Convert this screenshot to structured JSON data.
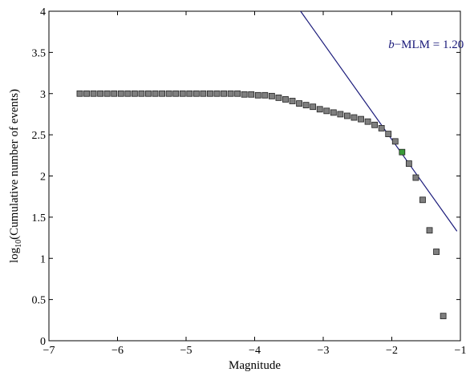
{
  "chart_data": {
    "type": "scatter",
    "xlabel": "Magnitude",
    "ylabel_prefix": "log",
    "ylabel_sub": "10",
    "ylabel_rest": "(Cumulative number of events)",
    "xlim": [
      -7,
      -1
    ],
    "ylim": [
      0,
      4
    ],
    "xticks": [
      -7,
      -6,
      -5,
      -4,
      -3,
      -2,
      -1
    ],
    "yticks": [
      0,
      0.5,
      1,
      1.5,
      2,
      2.5,
      3,
      3.5,
      4
    ],
    "xtick_labels": [
      "−7",
      "−6",
      "−5",
      "−4",
      "−3",
      "−2",
      "−1"
    ],
    "ytick_labels": [
      "0",
      "0.5",
      "1",
      "1.5",
      "2",
      "2.5",
      "3",
      "3.5",
      "4"
    ],
    "grid": false,
    "marker_color": "#7f7f7f",
    "highlight_color": "#3a9a3a",
    "line_color": "#1a1a7a",
    "points": [
      {
        "x": -6.55,
        "y": 3.0
      },
      {
        "x": -6.45,
        "y": 3.0
      },
      {
        "x": -6.35,
        "y": 3.0
      },
      {
        "x": -6.25,
        "y": 3.0
      },
      {
        "x": -6.15,
        "y": 3.0
      },
      {
        "x": -6.05,
        "y": 3.0
      },
      {
        "x": -5.95,
        "y": 3.0
      },
      {
        "x": -5.85,
        "y": 3.0
      },
      {
        "x": -5.75,
        "y": 3.0
      },
      {
        "x": -5.65,
        "y": 3.0
      },
      {
        "x": -5.55,
        "y": 3.0
      },
      {
        "x": -5.45,
        "y": 3.0
      },
      {
        "x": -5.35,
        "y": 3.0
      },
      {
        "x": -5.25,
        "y": 3.0
      },
      {
        "x": -5.15,
        "y": 3.0
      },
      {
        "x": -5.05,
        "y": 3.0
      },
      {
        "x": -4.95,
        "y": 3.0
      },
      {
        "x": -4.85,
        "y": 3.0
      },
      {
        "x": -4.75,
        "y": 3.0
      },
      {
        "x": -4.65,
        "y": 3.0
      },
      {
        "x": -4.55,
        "y": 3.0
      },
      {
        "x": -4.45,
        "y": 3.0
      },
      {
        "x": -4.35,
        "y": 3.0
      },
      {
        "x": -4.25,
        "y": 3.0
      },
      {
        "x": -4.15,
        "y": 2.99
      },
      {
        "x": -4.05,
        "y": 2.99
      },
      {
        "x": -3.95,
        "y": 2.98
      },
      {
        "x": -3.85,
        "y": 2.98
      },
      {
        "x": -3.75,
        "y": 2.97
      },
      {
        "x": -3.65,
        "y": 2.95
      },
      {
        "x": -3.55,
        "y": 2.93
      },
      {
        "x": -3.45,
        "y": 2.91
      },
      {
        "x": -3.35,
        "y": 2.88
      },
      {
        "x": -3.25,
        "y": 2.86
      },
      {
        "x": -3.15,
        "y": 2.84
      },
      {
        "x": -3.05,
        "y": 2.81
      },
      {
        "x": -2.95,
        "y": 2.79
      },
      {
        "x": -2.85,
        "y": 2.77
      },
      {
        "x": -2.75,
        "y": 2.75
      },
      {
        "x": -2.65,
        "y": 2.73
      },
      {
        "x": -2.55,
        "y": 2.71
      },
      {
        "x": -2.45,
        "y": 2.69
      },
      {
        "x": -2.35,
        "y": 2.66
      },
      {
        "x": -2.25,
        "y": 2.62
      },
      {
        "x": -2.15,
        "y": 2.58
      },
      {
        "x": -2.05,
        "y": 2.51
      },
      {
        "x": -1.95,
        "y": 2.42
      },
      {
        "x": -1.85,
        "y": 2.29,
        "highlight": true
      },
      {
        "x": -1.75,
        "y": 2.15
      },
      {
        "x": -1.65,
        "y": 1.98
      },
      {
        "x": -1.55,
        "y": 1.71
      },
      {
        "x": -1.45,
        "y": 1.34
      },
      {
        "x": -1.35,
        "y": 1.08
      },
      {
        "x": -1.25,
        "y": 0.3
      }
    ],
    "fit_line": {
      "x": [
        -3.33,
        -1.05
      ],
      "y": [
        4.0,
        1.33
      ]
    },
    "annotation": {
      "italic": "b",
      "text": "−MLM = 1.20",
      "x": -2.05,
      "y": 3.55
    }
  }
}
